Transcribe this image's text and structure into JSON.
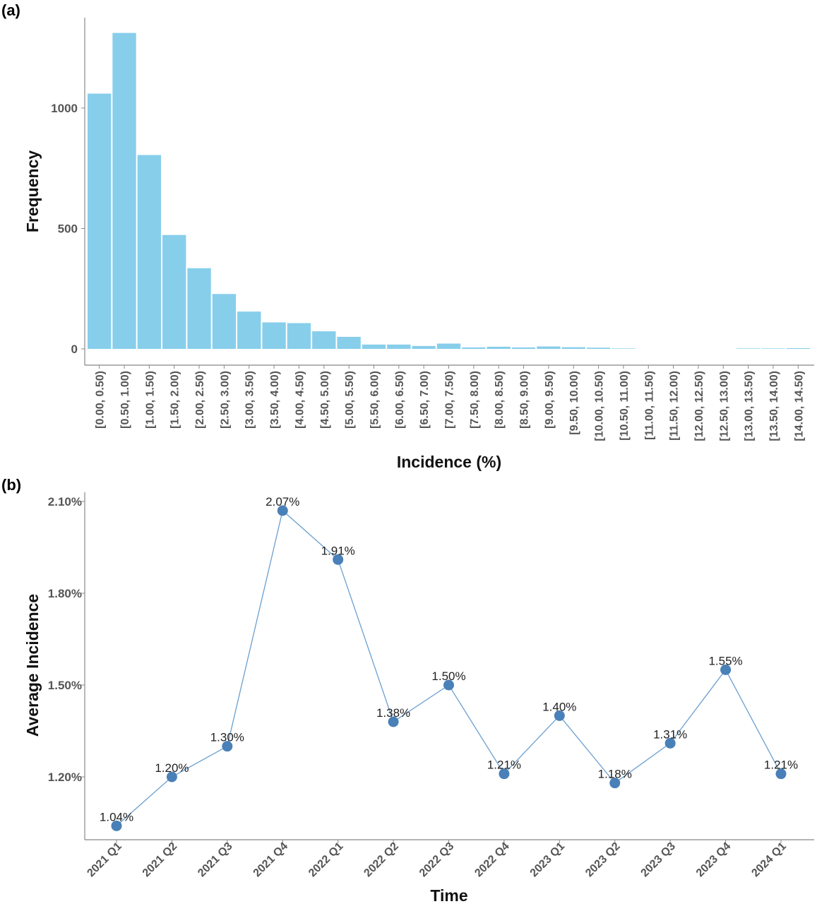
{
  "chart_data": [
    {
      "panel": "(a)",
      "type": "bar",
      "xlabel": "Incidence (%)",
      "ylabel": "Frequency",
      "ylim": [
        0,
        1350
      ],
      "yticks": [
        0,
        500,
        1000
      ],
      "bar_color": "#87CEEB",
      "categories": [
        "[0.00, 0.50)",
        "[0.50, 1.00)",
        "[1.00, 1.50)",
        "[1.50, 2.00)",
        "[2.00, 2.50)",
        "[2.50, 3.00)",
        "[3.00, 3.50)",
        "[3.50, 4.00)",
        "[4.00, 4.50)",
        "[4.50, 5.00)",
        "[5.00, 5.50)",
        "[5.50, 6.00)",
        "[6.00, 6.50)",
        "[6.50, 7.00)",
        "[7.00, 7.50)",
        "[7.50, 8.00)",
        "[8.00, 8.50)",
        "[8.50, 9.00)",
        "[9.00, 9.50)",
        "[9.50, 10.00)",
        "[10.00, 10.50)",
        "[10.50, 11.00)",
        "[11.00, 11.50)",
        "[11.50, 12.00)",
        "[12.00, 12.50)",
        "[12.50, 13.00)",
        "[13.00, 13.50)",
        "[13.50, 14.00)",
        "[14.00, 14.50)"
      ],
      "values": [
        1060,
        1312,
        805,
        473,
        335,
        228,
        155,
        110,
        107,
        73,
        50,
        18,
        18,
        12,
        22,
        6,
        9,
        6,
        10,
        7,
        5,
        2,
        0,
        0,
        0,
        0,
        2,
        2,
        3
      ]
    },
    {
      "panel": "(b)",
      "type": "line",
      "xlabel": "Time",
      "ylabel": "Average Incidence",
      "ylim": [
        0.95,
        2.13
      ],
      "yticks": [
        1.2,
        1.5,
        1.8,
        2.1
      ],
      "ytick_labels": [
        "1.20%",
        "1.50%",
        "1.80%",
        "2.10%"
      ],
      "line_color": "#6A9FD0",
      "marker_color": "#4A80B8",
      "categories": [
        "2021 Q1",
        "2021 Q2",
        "2021 Q3",
        "2021 Q4",
        "2022 Q1",
        "2022 Q2",
        "2022 Q3",
        "2022 Q4",
        "2023 Q1",
        "2023 Q2",
        "2023 Q3",
        "2023 Q4",
        "2024 Q1"
      ],
      "values": [
        1.04,
        1.2,
        1.3,
        2.07,
        1.91,
        1.38,
        1.5,
        1.21,
        1.4,
        1.18,
        1.31,
        1.55,
        1.21
      ],
      "labels": [
        "1.04%",
        "1.20%",
        "1.30%",
        "2.07%",
        "1.91%",
        "1.38%",
        "1.50%",
        "1.21%",
        "1.40%",
        "1.18%",
        "1.31%",
        "1.55%",
        "1.21%"
      ]
    }
  ]
}
